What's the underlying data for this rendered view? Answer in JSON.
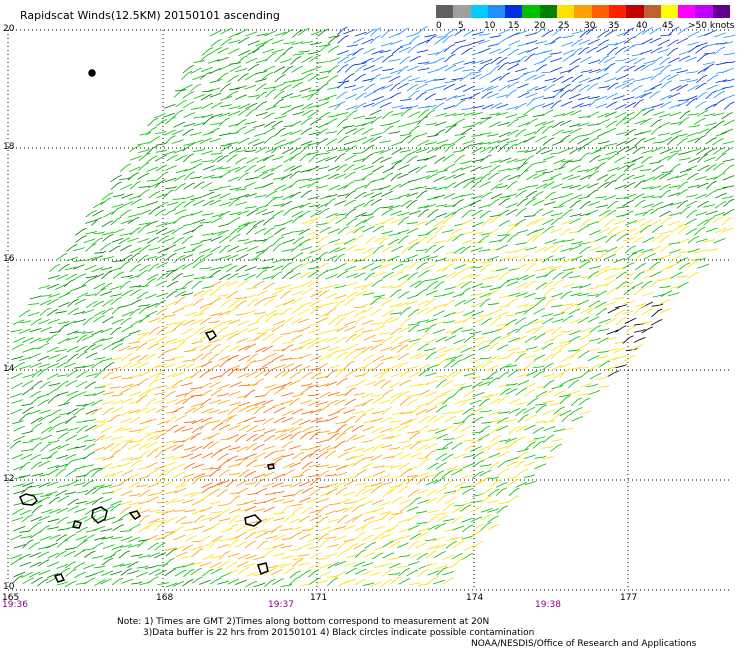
{
  "title": "Rapidscat Winds(12.5KM) 20150101 ascending",
  "legend": {
    "colors": [
      "#606060",
      "#a0a0a0",
      "#00ccff",
      "#2090ff",
      "#0030e0",
      "#00c000",
      "#008000",
      "#ffe000",
      "#ffa000",
      "#ff6000",
      "#ff2000",
      "#c00000",
      "#c06030",
      "#ffff00",
      "#ff00ff",
      "#c000ff",
      "#600090"
    ],
    "labels": [
      "0",
      "5",
      "10",
      "15",
      "20",
      "25",
      "30",
      "35",
      "40",
      "45",
      ">50 knots"
    ]
  },
  "latitudes": [
    "20",
    "18",
    "16",
    "14",
    "12",
    "10"
  ],
  "longitudes": [
    "165",
    "168",
    "171",
    "174",
    "177"
  ],
  "times": [
    "19:36",
    "19:37",
    "19:38"
  ],
  "notes": {
    "line1": "Note: 1) Times are GMT 2)Times along bottom correspond to measurement at 20N",
    "line2": "3)Data buffer is 22 hrs from 20150101 4) Black circles indicate possible contamination",
    "line3": "NOAA/NESDIS/Office of Research and Applications"
  }
}
